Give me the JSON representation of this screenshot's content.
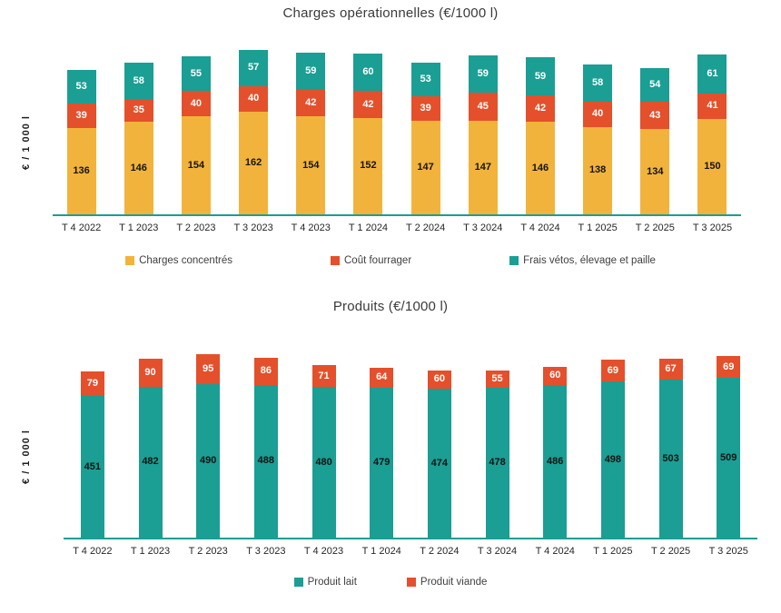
{
  "chart_data": [
    {
      "type": "bar",
      "stacked": true,
      "title": "Charges opérationnelles (€/1000 l)",
      "ylabel": "€ / 1 000 l",
      "xlabel": "",
      "grid": false,
      "legend_position": "bottom",
      "axis_line_color": "#1B9E93",
      "categories": [
        "T 4 2022",
        "T 1 2023",
        "T 2 2023",
        "T 3 2023",
        "T 4 2023",
        "T 1 2024",
        "T 2 2024",
        "T 3 2024",
        "T 4 2024",
        "T 1 2025",
        "T 2 2025",
        "T 3 2025"
      ],
      "series": [
        {
          "name": "Charges concentrés",
          "color": "#F2B33C",
          "label_color": "#141414",
          "values": [
            136,
            146,
            154,
            162,
            154,
            152,
            147,
            147,
            146,
            138,
            134,
            150
          ]
        },
        {
          "name": "Coût fourrager",
          "color": "#E4502B",
          "label_color": "#FFFFFF",
          "values": [
            39,
            35,
            40,
            40,
            42,
            42,
            39,
            45,
            42,
            40,
            43,
            41
          ]
        },
        {
          "name": "Frais vétos, élevage et paille",
          "color": "#1B9E93",
          "label_color": "#FFFFFF",
          "values": [
            53,
            58,
            55,
            57,
            59,
            60,
            53,
            59,
            59,
            58,
            54,
            61
          ]
        }
      ]
    },
    {
      "type": "bar",
      "stacked": true,
      "title": "Produits (€/1000 l)",
      "ylabel": "€ / 1 000 l",
      "xlabel": "",
      "grid": false,
      "legend_position": "bottom",
      "axis_line_color": "#1B9E93",
      "categories": [
        "T 4 2022",
        "T 1 2023",
        "T 2 2023",
        "T 3 2023",
        "T 4 2023",
        "T 1 2024",
        "T 2 2024",
        "T 3 2024",
        "T 4 2024",
        "T 1 2025",
        "T 2 2025",
        "T 3 2025"
      ],
      "series": [
        {
          "name": "Produit lait",
          "color": "#1B9E93",
          "label_color": "#141414",
          "values": [
            451,
            482,
            490,
            488,
            480,
            479,
            474,
            478,
            486,
            498,
            503,
            509
          ]
        },
        {
          "name": "Produit viande",
          "color": "#E4502B",
          "label_color": "#FFFFFF",
          "values": [
            79,
            90,
            95,
            86,
            71,
            64,
            60,
            55,
            60,
            69,
            67,
            69
          ]
        }
      ]
    }
  ]
}
